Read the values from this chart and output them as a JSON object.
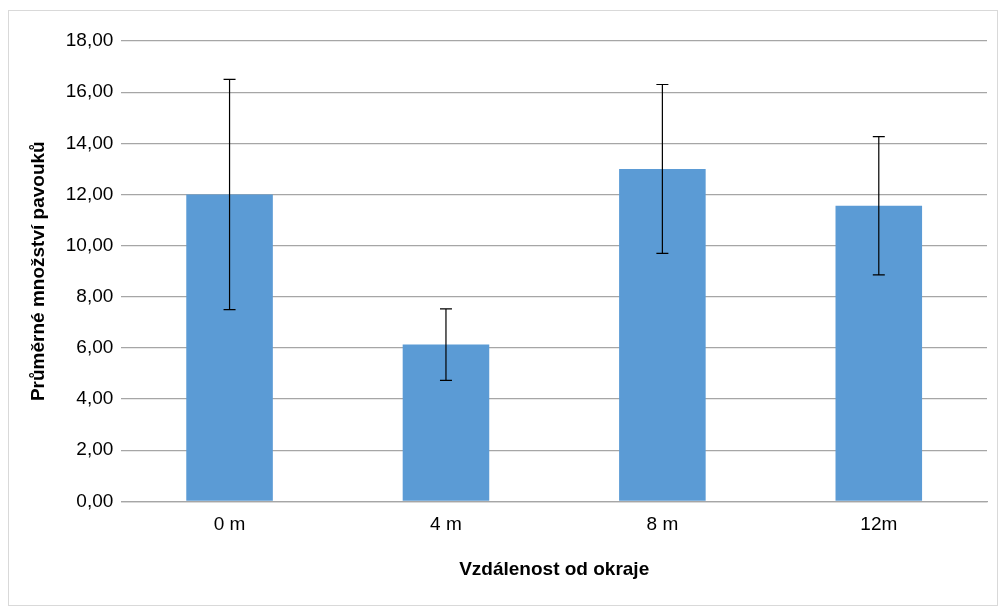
{
  "chart_data": {
    "type": "bar",
    "xlabel": "Vzdálenost od okraje",
    "ylabel": "Průměrné množství pavouků",
    "categories": [
      "0 m",
      "4 m",
      "8 m",
      "12m"
    ],
    "values": [
      12.0,
      6.13,
      13.0,
      11.56
    ],
    "errors": [
      4.5,
      1.4,
      3.3,
      2.7
    ],
    "color": "#5b9bd5",
    "ylim": [
      0,
      18
    ],
    "yticks": [
      {
        "value": 0,
        "label": "0,00"
      },
      {
        "value": 2,
        "label": "2,00"
      },
      {
        "value": 4,
        "label": "4,00"
      },
      {
        "value": 6,
        "label": "6,00"
      },
      {
        "value": 8,
        "label": "8,00"
      },
      {
        "value": 10,
        "label": "10,00"
      },
      {
        "value": 12,
        "label": "12,00"
      },
      {
        "value": 14,
        "label": "14,00"
      },
      {
        "value": 16,
        "label": "16,00"
      },
      {
        "value": 18,
        "label": "18,00"
      }
    ],
    "grid": "y"
  }
}
